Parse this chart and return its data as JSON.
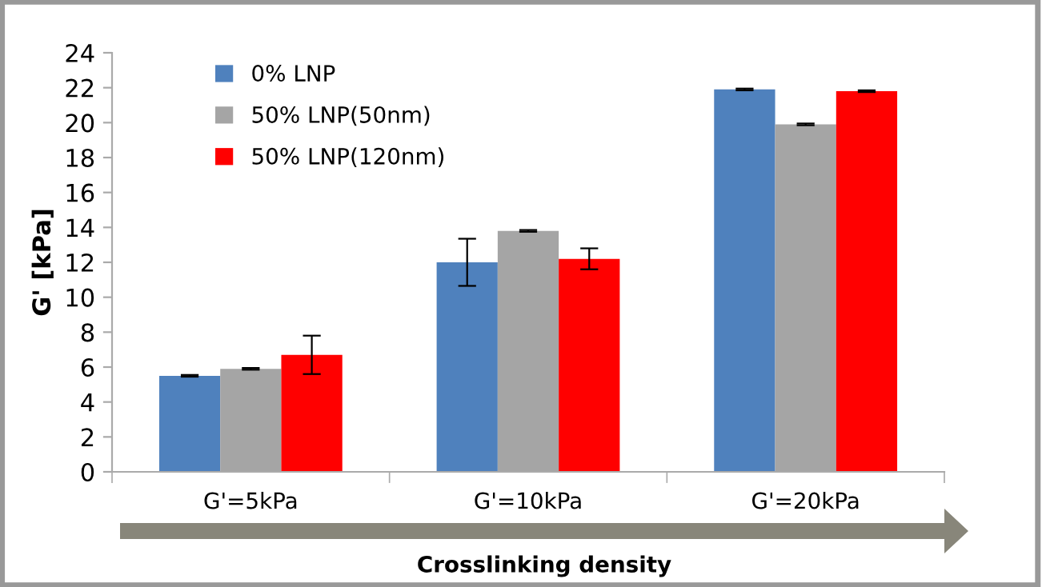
{
  "chart_data": {
    "type": "bar",
    "xlabel": "Crosslinking density",
    "ylabel": "G' [kPa]",
    "categories": [
      "G'=5kPa",
      "G'=10kPa",
      "G'=20kPa"
    ],
    "series": [
      {
        "name": "0% LNP",
        "color": "#4f81bd",
        "values": [
          5.5,
          12.0,
          21.9
        ],
        "errors": [
          0.05,
          1.35,
          0.05
        ]
      },
      {
        "name": "50% LNP(50nm)",
        "color": "#a5a5a5",
        "values": [
          5.9,
          13.8,
          19.9
        ],
        "errors": [
          0.05,
          0.05,
          0.05
        ]
      },
      {
        "name": "50% LNP(120nm)",
        "color": "#ff0000",
        "values": [
          6.7,
          12.2,
          21.8
        ],
        "errors": [
          1.1,
          0.6,
          0.05
        ]
      }
    ],
    "ylim": [
      0,
      24
    ],
    "yticks": [
      0,
      2,
      4,
      6,
      8,
      10,
      12,
      14,
      16,
      18,
      20,
      22,
      24
    ],
    "grid": false,
    "legend": "top left"
  }
}
